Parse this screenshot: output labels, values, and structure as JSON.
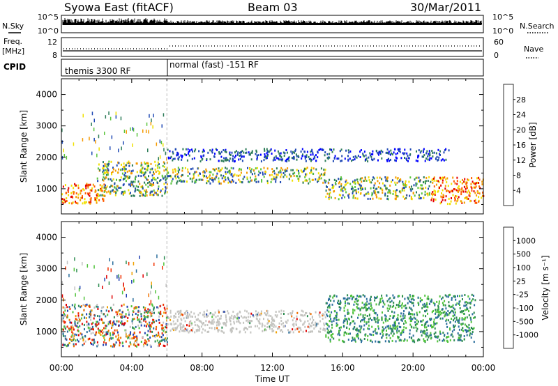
{
  "header": {
    "station": "Syowa East (fitACF)",
    "beam": "Beam 03",
    "date": "30/Mar/2011"
  },
  "top_panels": {
    "nsky_label": "N.Sky",
    "nsky_ticks": [
      "10^5",
      "10^0"
    ],
    "nsearch_label": "N.Search",
    "nsearch_ticks": [
      "10^5",
      "10^0"
    ],
    "freq_label_line1": "Freq.",
    "freq_label_line2": "[MHz]",
    "freq_ticks": [
      "12",
      "8"
    ],
    "nave_label": "Nave",
    "nave_ticks": [
      "60",
      "0"
    ],
    "cpid_label": "CPID",
    "cpid_modes": [
      {
        "text": "themis 3300 RF",
        "start_hour": 0
      },
      {
        "text": "normal (fast) -151 RF",
        "start_hour": 6
      }
    ]
  },
  "chart_data": [
    {
      "type": "heatmap",
      "title": "",
      "xlabel": "Time UT",
      "ylabel": "Slant Range [km]",
      "xlim": [
        0,
        24
      ],
      "ylim": [
        200,
        4500
      ],
      "x_ticks": [
        "00:00",
        "04:00",
        "08:00",
        "12:00",
        "16:00",
        "20:00",
        "00:00"
      ],
      "y_ticks": [
        "1000",
        "2000",
        "3000",
        "4000"
      ],
      "colorbar_label": "Power [dB]",
      "colorbar_ticks": [
        "4",
        "8",
        "12",
        "16",
        "20",
        "24",
        "28"
      ],
      "colorbar_colors": [
        "#0000ff",
        "#1f49b4",
        "#2c7c58",
        "#59c43c",
        "#f0e000",
        "#f59a00",
        "#ff5a00",
        "#e60000"
      ],
      "echo_regions": [
        {
          "t0": 0.0,
          "t1": 2.5,
          "r0": 550,
          "r1": 1200,
          "level": "high"
        },
        {
          "t0": 2.0,
          "t1": 6.0,
          "r0": 800,
          "r1": 1900,
          "level": "medium"
        },
        {
          "t0": 6.0,
          "t1": 15.0,
          "r0": 1200,
          "r1": 1700,
          "level": "medium"
        },
        {
          "t0": 6.0,
          "t1": 22.0,
          "r0": 1900,
          "r1": 2300,
          "level": "low"
        },
        {
          "t0": 15.0,
          "t1": 21.0,
          "r0": 700,
          "r1": 1400,
          "level": "medium"
        },
        {
          "t0": 21.0,
          "t1": 24.0,
          "r0": 550,
          "r1": 1400,
          "level": "high"
        }
      ]
    },
    {
      "type": "heatmap",
      "title": "",
      "xlabel": "Time UT",
      "ylabel": "Slant Range [km]",
      "xlim": [
        0,
        24
      ],
      "ylim": [
        200,
        4500
      ],
      "x_ticks": [
        "00:00",
        "04:00",
        "08:00",
        "12:00",
        "16:00",
        "20:00",
        "00:00"
      ],
      "y_ticks": [
        "1000",
        "2000",
        "3000",
        "4000"
      ],
      "colorbar_label": "Velocity [m s⁻¹]",
      "colorbar_ticks": [
        "1000",
        "500",
        "100",
        "25",
        "-25",
        "-100",
        "-500",
        "-1000"
      ],
      "colorbar_colors": [
        "#1f3fb0",
        "#2a6e9c",
        "#2c8c50",
        "#4fc23a",
        "#c0c0c0",
        "#f0a000",
        "#f07000",
        "#f03000",
        "#e00000"
      ],
      "echo_regions": [
        {
          "t0": 0.0,
          "t1": 6.0,
          "r0": 550,
          "r1": 1900,
          "level": "mixed"
        },
        {
          "t0": 6.0,
          "t1": 15.0,
          "r0": 1000,
          "r1": 1700,
          "level": "ground"
        },
        {
          "t0": 15.0,
          "t1": 23.5,
          "r0": 700,
          "r1": 2200,
          "level": "positive"
        }
      ]
    }
  ]
}
